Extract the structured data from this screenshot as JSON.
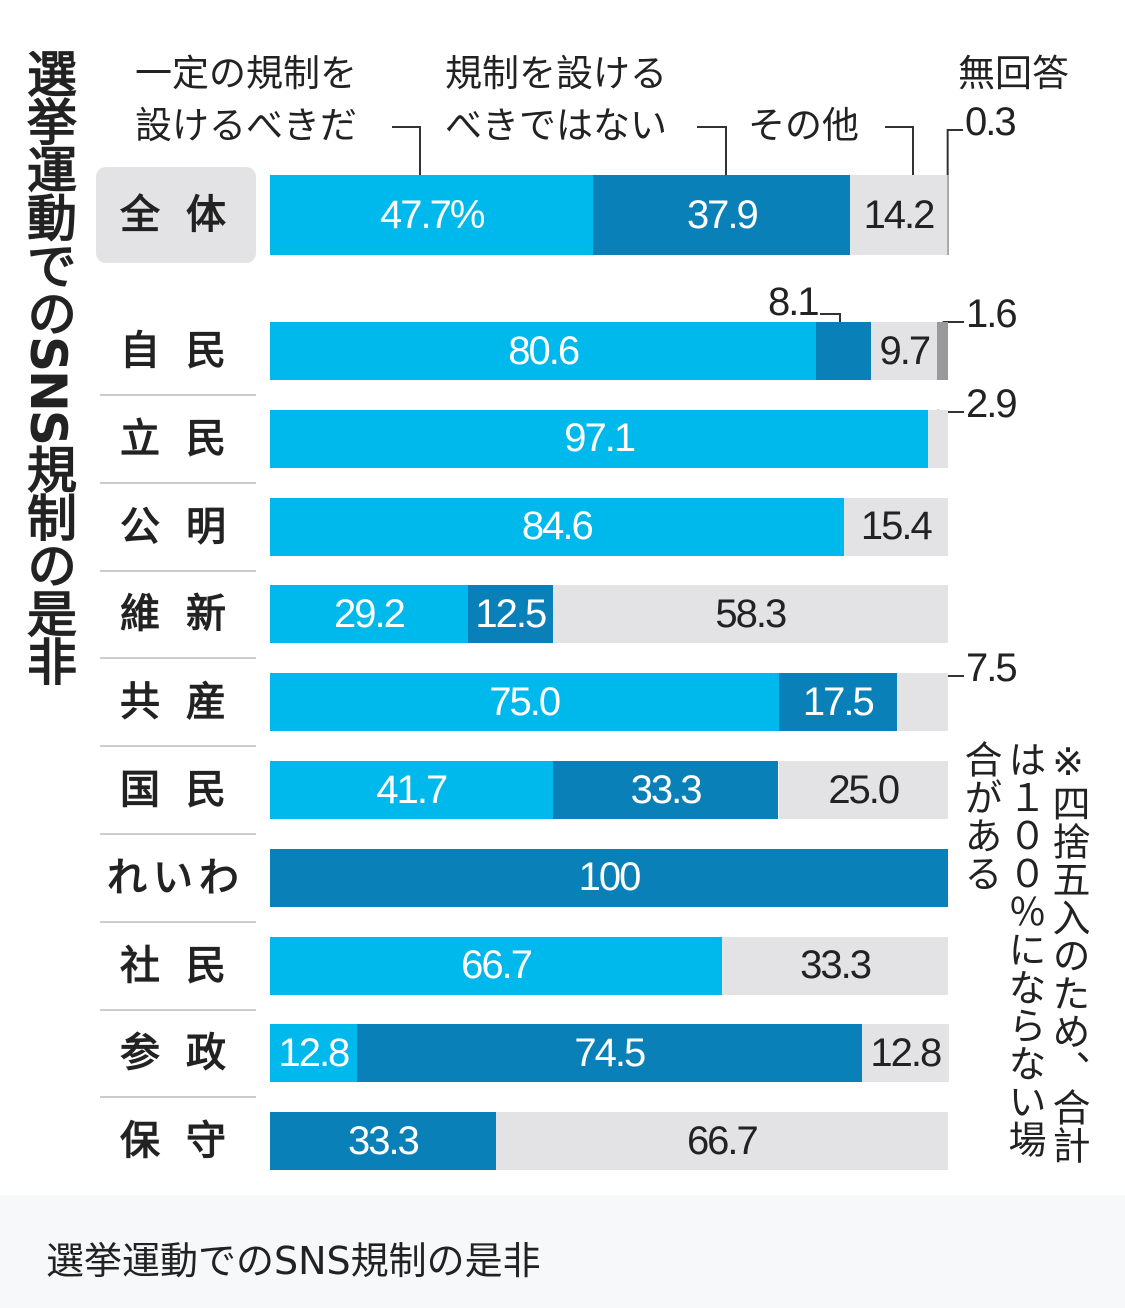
{
  "chart_data": {
    "type": "bar",
    "stacked": true,
    "orientation": "horizontal",
    "title": "選挙運動でのSNS規制の是非",
    "legend": [
      "一定の規制を設けるべきだ",
      "規制を設けるべきではない",
      "その他",
      "無回答"
    ],
    "legend_text": {
      "yes": "一定の規制を\n設けるべきだ",
      "no": "規制を設ける\nべきではない",
      "other": "その他",
      "na": "無回答"
    },
    "colors": [
      "#00b9ec",
      "#0a80b8",
      "#e3e3e5",
      "#999999"
    ],
    "unit": "%",
    "xlim": [
      0,
      100
    ],
    "rows": [
      {
        "name": "全　体",
        "values": [
          47.7,
          37.9,
          14.2,
          0.3
        ],
        "labels": [
          "47.7%",
          "37.9",
          "14.2",
          "0.3"
        ]
      },
      {
        "name": "自　民",
        "values": [
          80.6,
          8.1,
          9.7,
          1.6
        ],
        "labels": [
          "80.6",
          "8.1",
          "9.7",
          "1.6"
        ]
      },
      {
        "name": "立　民",
        "values": [
          97.1,
          0,
          2.9,
          0
        ],
        "labels": [
          "97.1",
          "",
          "2.9",
          ""
        ]
      },
      {
        "name": "公　明",
        "values": [
          84.6,
          0,
          15.4,
          0
        ],
        "labels": [
          "84.6",
          "",
          "15.4",
          ""
        ]
      },
      {
        "name": "維　新",
        "values": [
          29.2,
          12.5,
          58.3,
          0
        ],
        "labels": [
          "29.2",
          "12.5",
          "58.3",
          ""
        ]
      },
      {
        "name": "共　産",
        "values": [
          75.0,
          17.5,
          7.5,
          0
        ],
        "labels": [
          "75.0",
          "17.5",
          "7.5",
          ""
        ]
      },
      {
        "name": "国　民",
        "values": [
          41.7,
          33.3,
          25.0,
          0
        ],
        "labels": [
          "41.7",
          "33.3",
          "25.0",
          ""
        ]
      },
      {
        "name": "れいわ",
        "values": [
          0,
          100,
          0,
          0
        ],
        "labels": [
          "",
          "100",
          "",
          ""
        ]
      },
      {
        "name": "社　民",
        "values": [
          66.7,
          0,
          33.3,
          0
        ],
        "labels": [
          "66.7",
          "",
          "33.3",
          ""
        ]
      },
      {
        "name": "参　政",
        "values": [
          12.8,
          74.5,
          12.8,
          0
        ],
        "labels": [
          "12.8",
          "74.5",
          "12.8",
          ""
        ]
      },
      {
        "name": "保　守",
        "values": [
          0,
          33.3,
          66.7,
          0
        ],
        "labels": [
          "",
          "33.3",
          "66.7",
          ""
        ]
      }
    ],
    "note": "※四捨五入のため、合計は１００％にならない場合がある"
  },
  "caption": "選挙運動でのSNS規制の是非"
}
